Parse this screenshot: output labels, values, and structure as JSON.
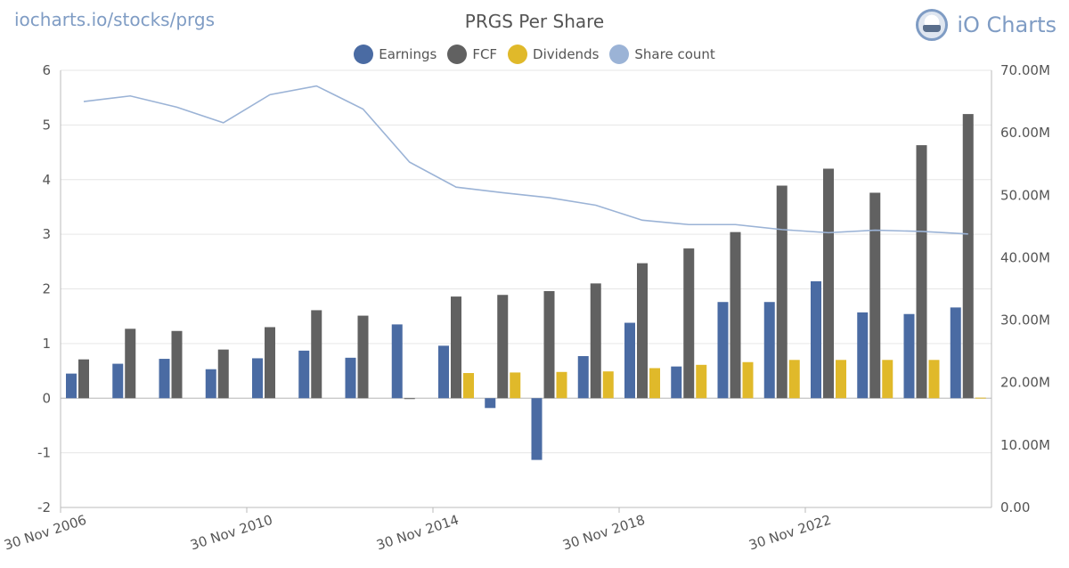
{
  "header": {
    "source_link": "iocharts.io/stocks/prgs",
    "brand": "iO Charts"
  },
  "colors": {
    "earnings": "#4a6ba3",
    "fcf": "#616161",
    "dividends": "#e0b92a",
    "share_count": "#9bb3d6",
    "grid": "#e6e6e6",
    "axis": "#bbbbbb"
  },
  "chart_data": {
    "type": "bar",
    "title": "PRGS Per Share",
    "legend_position": "top-center",
    "grid": true,
    "categories": [
      "2006",
      "2007",
      "2008",
      "2009",
      "2010",
      "2011",
      "2012",
      "2013",
      "2014",
      "2015",
      "2016",
      "2017",
      "2018",
      "2019",
      "2020",
      "2021",
      "2022",
      "2023",
      "2024",
      "2025"
    ],
    "x_tick_labels": [
      "30 Nov 2006",
      "30 Nov 2010",
      "30 Nov 2014",
      "30 Nov 2018",
      "30 Nov 2022"
    ],
    "x_tick_category_index": [
      0,
      4,
      8,
      12,
      16
    ],
    "y_left": {
      "ylim": [
        -2,
        6
      ],
      "ticks": [
        "6",
        "5",
        "4",
        "3",
        "2",
        "1",
        "0",
        "-1",
        "-2"
      ]
    },
    "y_right": {
      "ylim": [
        0,
        70000000
      ],
      "ticks": [
        "70.00M",
        "60.00M",
        "50.00M",
        "40.00M",
        "30.00M",
        "20.00M",
        "10.00M",
        "0.00"
      ]
    },
    "series": [
      {
        "name": "Earnings",
        "type": "bar",
        "axis": "left",
        "values": [
          0.45,
          0.63,
          0.72,
          0.53,
          0.73,
          0.87,
          0.74,
          1.35,
          0.96,
          -0.18,
          -1.13,
          0.77,
          1.38,
          0.58,
          1.76,
          1.76,
          2.14,
          1.57,
          1.54,
          1.66
        ]
      },
      {
        "name": "FCF",
        "type": "bar",
        "axis": "left",
        "values": [
          0.71,
          1.27,
          1.23,
          0.89,
          1.3,
          1.61,
          1.51,
          -0.01,
          1.86,
          1.89,
          1.96,
          2.1,
          2.47,
          2.74,
          3.04,
          3.89,
          4.2,
          3.76,
          4.63,
          5.2
        ]
      },
      {
        "name": "Dividends",
        "type": "bar",
        "axis": "left",
        "values": [
          0,
          0,
          0,
          0,
          0,
          0,
          0,
          0,
          0.46,
          0.47,
          0.48,
          0.49,
          0.55,
          0.61,
          0.66,
          0.7,
          0.7,
          0.7,
          0.7,
          0.01
        ]
      },
      {
        "name": "Share count",
        "type": "line",
        "axis": "right",
        "values": [
          65000000,
          65900000,
          64100000,
          61600000,
          66100000,
          67500000,
          63800000,
          55300000,
          51300000,
          50400000,
          49600000,
          48400000,
          46000000,
          45300000,
          45300000,
          44500000,
          44000000,
          44400000,
          44200000,
          43800000
        ]
      }
    ]
  }
}
